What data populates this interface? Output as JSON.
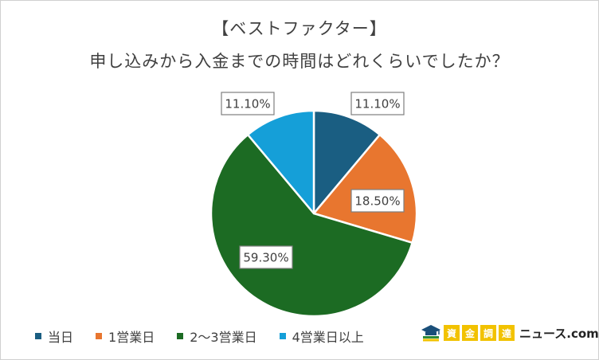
{
  "chart_data": {
    "type": "pie",
    "title_line1": "【ベストファクター】",
    "title_line2": "申し込みから入金までの時間はどれくらいでしたか？",
    "legend_position": "bottom-left",
    "slices": [
      {
        "name": "当日",
        "value": 11.1,
        "label": "11.10%",
        "color": "#1a5e82"
      },
      {
        "name": "1営業日",
        "value": 18.5,
        "label": "18.50%",
        "color": "#e8762f"
      },
      {
        "name": "2〜3営業日",
        "value": 59.3,
        "label": "59.30%",
        "color": "#1c6b23"
      },
      {
        "name": "4営業日以上",
        "value": 11.1,
        "label": "11.10%",
        "color": "#159fd8"
      }
    ]
  },
  "logo": {
    "icon": "graduation-cap-book-icon",
    "chars": [
      "資",
      "金",
      "調",
      "達"
    ],
    "suffix": "ニュース.com"
  }
}
